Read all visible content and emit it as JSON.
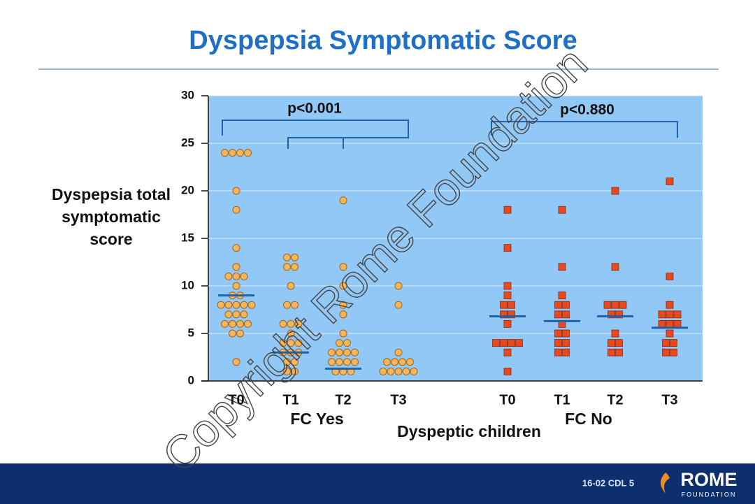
{
  "chart_data": {
    "type": "dotplot",
    "title": "Dyspepsia Symptomatic Score",
    "ylabel": "Dyspepsia total symptomatic score",
    "xlabel": "Dyspeptic children",
    "categories": [
      "T0",
      "T1",
      "T2",
      "T3",
      "T0",
      "T1",
      "T2",
      "T3"
    ],
    "groups": [
      "FC Yes",
      "FC No"
    ],
    "annotations": [
      "p<0.001",
      "p<0.880"
    ],
    "ylim": [
      0,
      30
    ],
    "yticks": [
      0,
      5,
      10,
      15,
      20,
      25,
      30
    ],
    "grid": true,
    "series": [
      {
        "color": "#f5b55a",
        "marker": "circle",
        "values": [
          [
            24,
            24,
            24,
            24,
            20,
            18,
            14,
            12,
            11,
            11,
            11,
            10,
            9,
            9,
            8,
            8,
            8,
            8,
            8,
            7,
            7,
            7,
            6,
            6,
            6,
            6,
            5,
            5,
            2
          ],
          [
            13,
            13,
            12,
            12,
            10,
            8,
            8,
            6,
            6,
            6,
            5,
            4,
            4,
            4,
            3,
            3,
            3,
            2,
            2,
            1,
            1
          ],
          [
            19,
            12,
            10,
            8,
            7,
            5,
            4,
            4,
            3,
            3,
            3,
            3,
            2,
            2,
            2,
            2,
            1,
            1,
            1
          ],
          [
            10,
            8,
            3,
            2,
            2,
            2,
            2,
            1,
            1,
            1,
            1,
            1
          ]
        ],
        "medians": [
          9,
          3,
          1.3,
          null
        ]
      },
      {
        "color": "#e8491e",
        "marker": "square",
        "values": [
          [
            18,
            14,
            10,
            9,
            8,
            8,
            7,
            7,
            6,
            4,
            4,
            4,
            4,
            3,
            1
          ],
          [
            18,
            12,
            9,
            8,
            8,
            7,
            7,
            6,
            5,
            5,
            4,
            4,
            3,
            3
          ],
          [
            20,
            12,
            8,
            8,
            8,
            7,
            7,
            5,
            4,
            4,
            3,
            3
          ],
          [
            21,
            11,
            8,
            7,
            7,
            7,
            6,
            6,
            6,
            5,
            4,
            4,
            3,
            3
          ]
        ],
        "medians": [
          6.8,
          6.3,
          6.8,
          5.6
        ]
      }
    ]
  },
  "footer": {
    "code": "16-02  CDL 5",
    "logo": "ROME",
    "logo_sub": "FOUNDATION"
  },
  "watermark": "Copyright Rome Foundation"
}
